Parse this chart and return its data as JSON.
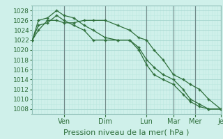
{
  "background_color": "#cff0ea",
  "plot_bg_color": "#cff0ea",
  "grid_major_color": "#a8d8d0",
  "grid_minor_color": "#bce8e0",
  "line_color": "#2d6e3a",
  "marker_color": "#2d6e3a",
  "xlabel": "Pression niveau de la mer( hPa )",
  "ylim": [
    1007,
    1029
  ],
  "yticks": [
    1008,
    1010,
    1012,
    1014,
    1016,
    1018,
    1020,
    1022,
    1024,
    1026,
    1028
  ],
  "x_day_labels": [
    "Ven",
    "Dim",
    "Lun",
    "Mar",
    "Mer",
    "Je"
  ],
  "x_day_positions": [
    52,
    120,
    188,
    232,
    268,
    310
  ],
  "series1_x": [
    0,
    10,
    25,
    40,
    52,
    68,
    85,
    100,
    120,
    140,
    160,
    175,
    188,
    200,
    215,
    232,
    248,
    260,
    275,
    290,
    310
  ],
  "series1_y": [
    1022,
    1024,
    1026,
    1026,
    1025.5,
    1025.5,
    1026,
    1026,
    1026,
    1025,
    1024,
    1022.5,
    1022,
    1020,
    1018,
    1015,
    1014,
    1013,
    1012,
    1010,
    1008
  ],
  "series2_x": [
    0,
    10,
    25,
    40,
    52,
    68,
    85,
    100,
    120,
    140,
    160,
    175,
    188,
    200,
    215,
    232,
    248,
    260,
    275,
    290,
    310
  ],
  "series2_y": [
    1022,
    1026,
    1026.5,
    1028,
    1027,
    1026.5,
    1025,
    1024,
    1022.5,
    1022,
    1022,
    1020.5,
    1018,
    1016.5,
    1015,
    1014,
    1012,
    1010,
    1009,
    1008,
    1008
  ],
  "series3_x": [
    0,
    10,
    25,
    40,
    52,
    68,
    85,
    100,
    120,
    140,
    160,
    175,
    188,
    200,
    215,
    232,
    248,
    260,
    275,
    290,
    310
  ],
  "series3_y": [
    1022,
    1025,
    1025.5,
    1027,
    1026,
    1025,
    1024,
    1022,
    1022,
    1022,
    1022,
    1020,
    1017,
    1015,
    1014,
    1013,
    1011,
    1009.5,
    1008.5,
    1008,
    1008
  ],
  "xlabel_fontsize": 8,
  "ytick_fontsize": 6.5,
  "xtick_fontsize": 7,
  "spine_color": "#90c0b8",
  "vline_color": "#708888"
}
